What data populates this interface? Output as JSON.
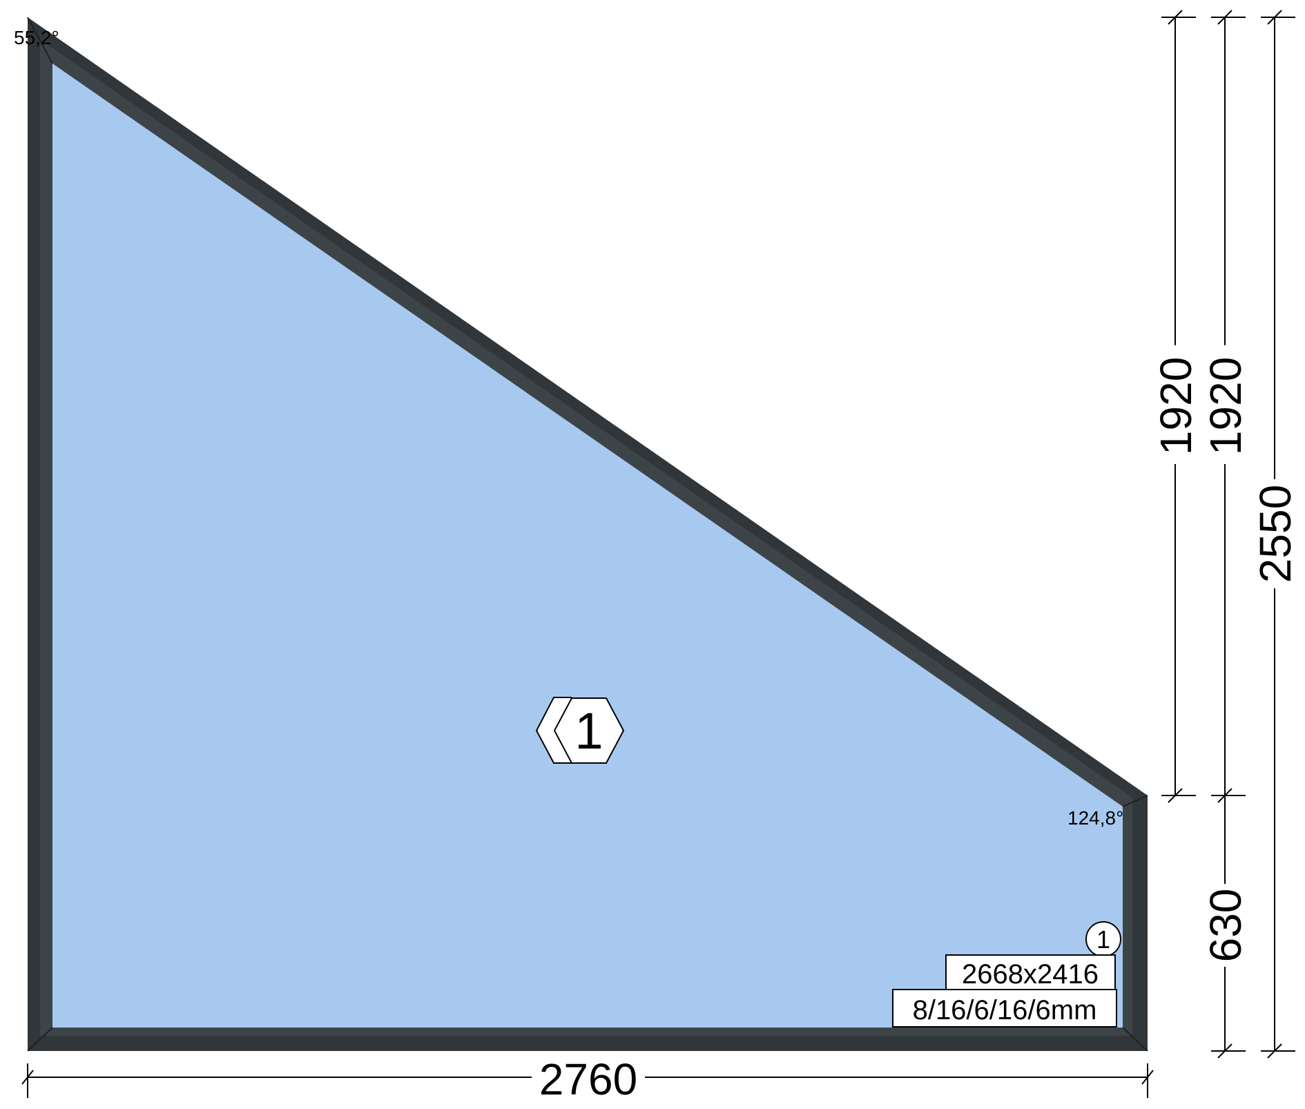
{
  "window": {
    "glass_color": "#a8c9ef",
    "frame_color": "#30363a",
    "frame_inner_color": "#3d4448",
    "panel_number": "1",
    "angles": {
      "top_left": "55,2°",
      "right_top": "124,8°"
    },
    "glass_tag": {
      "number": "1",
      "size": "2668x2416",
      "composition": "8/16/6/16/6mm"
    }
  },
  "dimensions": {
    "width": "2760",
    "right_upper_1": "1920",
    "right_upper_2": "1920",
    "right_lower": "630",
    "overall_height": "2550"
  }
}
